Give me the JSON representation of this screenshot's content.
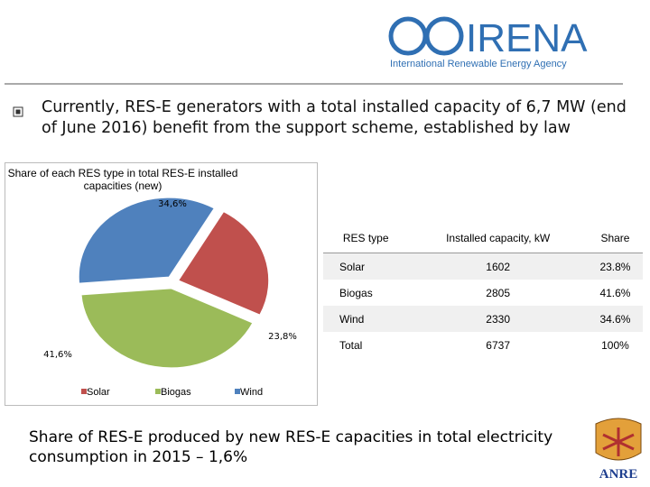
{
  "header": {
    "logo_name": "IRENA",
    "logo_subtitle": "International Renewable Energy Agency"
  },
  "bullet": "Currently, RES-E generators with a total installed capacity of 6,7 MW (end of June 2016) benefit from the support scheme, established by law",
  "chart_data": {
    "type": "pie",
    "title": "Share of each RES type in total RES-E installed capacities (new)",
    "categories": [
      "Solar",
      "Biogas",
      "Wind"
    ],
    "values": [
      23.8,
      41.6,
      34.6
    ],
    "value_labels": [
      "23,8%",
      "41,6%",
      "34,6%"
    ],
    "colors": [
      "#c0504d",
      "#9bbb59",
      "#4f81bd"
    ],
    "legend": "bottom"
  },
  "table": {
    "header": [
      "RES type",
      "Installed capacity, kW",
      "Share"
    ],
    "rows": [
      [
        "Solar",
        1602,
        "23.8%"
      ],
      [
        "Biogas",
        2805,
        "41.6%"
      ],
      [
        "Wind",
        2330,
        "34.6%"
      ],
      [
        "Total",
        6737,
        "100%"
      ]
    ]
  },
  "footer": {
    "text": "Share of RES-E produced by new RES-E capacities in total electricity consumption in 2015 – 1,6%",
    "logo": "ANRE"
  }
}
